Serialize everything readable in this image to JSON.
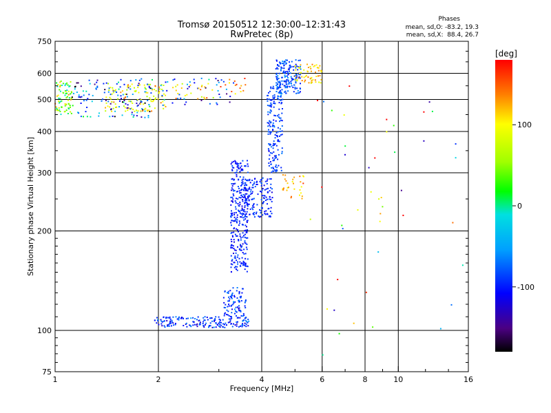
{
  "chart_data": {
    "type": "scatter",
    "title": "Tromsø 20150512 12:30:00–12:31:43",
    "subtitle": "RwPretec (8p)",
    "xlabel": "Frequency [MHz]",
    "ylabel": "Stationary phase Virtual Height [km]",
    "x_scale": "log",
    "y_scale": "log",
    "xlim": [
      1,
      16
    ],
    "ylim": [
      75,
      750
    ],
    "x_ticks": [
      1,
      2,
      4,
      6,
      8,
      10,
      16
    ],
    "x_minor_ticks": [
      3,
      5,
      7,
      9,
      12,
      14
    ],
    "y_ticks": [
      75,
      100,
      200,
      300,
      400,
      500,
      600,
      750
    ],
    "y_grid": [
      100,
      200,
      300,
      400,
      500,
      600
    ],
    "x_grid": [
      2,
      4,
      6,
      8,
      10
    ],
    "grid": true,
    "phases": {
      "title": "Phases",
      "line1": "mean, sd,O: -83.2, 19.3",
      "line2": "mean, sd,X:  88.4, 26.7"
    },
    "colorbar": {
      "label": "[deg]",
      "min": -180,
      "max": 180,
      "ticks": [
        -100,
        0,
        100
      ]
    },
    "o_mode": {
      "mean": -83.2,
      "sd": 19.3
    },
    "x_mode": {
      "mean": 88.4,
      "sd": 26.7
    },
    "clusters": [
      {
        "f": [
          1.0,
          1.12
        ],
        "h": [
          450,
          570
        ],
        "phase": 45,
        "spread": 40,
        "n": 80
      },
      {
        "f": [
          1.12,
          1.95
        ],
        "h": [
          440,
          580
        ],
        "phase": -80,
        "spread": 50,
        "n": 140
      },
      {
        "f": [
          1.4,
          2.1
        ],
        "h": [
          460,
          560
        ],
        "phase": 95,
        "spread": 25,
        "n": 110
      },
      {
        "f": [
          2.0,
          3.4
        ],
        "h": [
          480,
          580
        ],
        "phase": -85,
        "spread": 40,
        "n": 45
      },
      {
        "f": [
          2.2,
          2.9
        ],
        "h": [
          500,
          560
        ],
        "phase": 100,
        "spread": 25,
        "n": 25
      },
      {
        "f": [
          3.0,
          3.6
        ],
        "h": [
          520,
          590
        ],
        "phase": 120,
        "spread": 30,
        "n": 15
      },
      {
        "f": [
          1.95,
          3.7
        ],
        "h": [
          102,
          110
        ],
        "phase": -95,
        "spread": 20,
        "n": 180
      },
      {
        "f": [
          3.1,
          3.6
        ],
        "h": [
          110,
          135
        ],
        "phase": -90,
        "spread": 15,
        "n": 90
      },
      {
        "f": [
          3.25,
          3.65
        ],
        "h": [
          150,
          330
        ],
        "phase": -100,
        "spread": 12,
        "n": 300
      },
      {
        "f": [
          3.5,
          4.3
        ],
        "h": [
          220,
          290
        ],
        "phase": -95,
        "spread": 12,
        "n": 160
      },
      {
        "f": [
          4.15,
          4.6
        ],
        "h": [
          300,
          560
        ],
        "phase": -90,
        "spread": 12,
        "n": 180
      },
      {
        "f": [
          4.4,
          5.2
        ],
        "h": [
          520,
          660
        ],
        "phase": -85,
        "spread": 15,
        "n": 180
      },
      {
        "f": [
          5.0,
          6.0
        ],
        "h": [
          560,
          640
        ],
        "phase": 110,
        "spread": 20,
        "n": 60
      },
      {
        "f": [
          4.6,
          5.3
        ],
        "h": [
          250,
          300
        ],
        "phase": 120,
        "spread": 15,
        "n": 30
      },
      {
        "f": [
          5.5,
          15.5
        ],
        "h": [
          80,
          650
        ],
        "phase": 40,
        "spread": 150,
        "n": 45
      }
    ]
  }
}
